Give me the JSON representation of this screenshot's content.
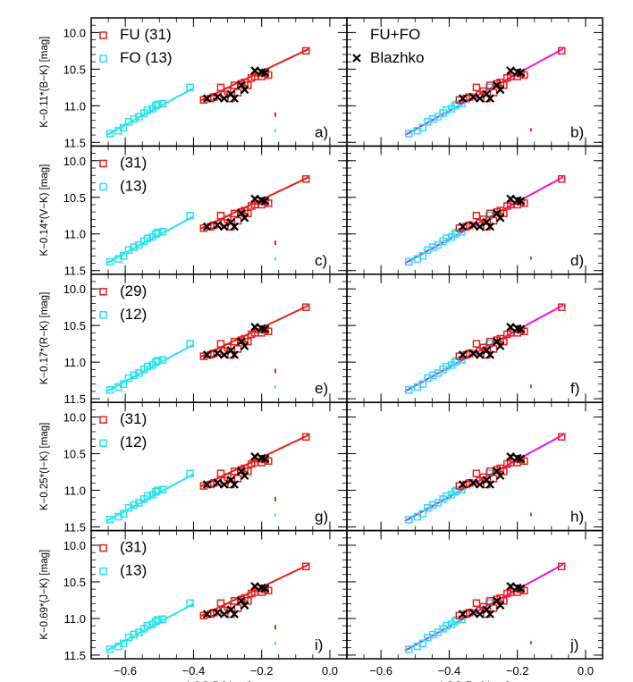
{
  "chart_data": {
    "type": "scatter",
    "x_axis": {
      "left_label": "LOG P [days]",
      "right_label_base": "LOG P",
      "right_label_sub": "F",
      "right_label_tail": " [days]",
      "range": [
        -0.7,
        0.05
      ],
      "ticks": [
        -0.6,
        -0.4,
        -0.2,
        0.0
      ],
      "tick_labels": [
        "−0.6",
        "−0.4",
        "−0.2",
        "0.0"
      ]
    },
    "y_axis": {
      "range": [
        11.55,
        9.8
      ],
      "ticks": [
        10.0,
        10.5,
        11.0,
        11.5
      ],
      "tick_labels": [
        "10.0",
        "10.5",
        "11.0",
        "11.5"
      ]
    },
    "colors": {
      "fu": "#e8201c",
      "fo": "#27e3ee",
      "fit_combined": "#ee10ee",
      "blazhko": "#000000"
    },
    "legend_text": {
      "fu_fo": "FU+FO",
      "blazhko": "Blazhko"
    },
    "rows": [
      {
        "ylabel": "K−0.11*(B−K) [mag]",
        "fu_count": "FU (31)",
        "fo_count": "FO (13)",
        "left_panel": "a)",
        "right_panel": "b)"
      },
      {
        "ylabel": "K−0.14*(V−K) [mag]",
        "fu_count": "(31)",
        "fo_count": "(13)",
        "left_panel": "c)",
        "right_panel": "d)"
      },
      {
        "ylabel": "K−0.17*(R−K) [mag]",
        "fu_count": "(29)",
        "fo_count": "(12)",
        "left_panel": "e)",
        "right_panel": "f)"
      },
      {
        "ylabel": "K−0.25*(I−K) [mag]",
        "fu_count": "(31)",
        "fo_count": "(12)",
        "left_panel": "g)",
        "right_panel": "h)"
      },
      {
        "ylabel": "K−0.69*(J−K) [mag]",
        "fu_count": "(31)",
        "fo_count": "(13)",
        "left_panel": "i)",
        "right_panel": "j)"
      }
    ],
    "fo_points": [
      [
        -0.645,
        11.38
      ],
      [
        -0.62,
        11.34
      ],
      [
        -0.605,
        11.3
      ],
      [
        -0.59,
        11.22
      ],
      [
        -0.575,
        11.18
      ],
      [
        -0.56,
        11.15
      ],
      [
        -0.545,
        11.1
      ],
      [
        -0.535,
        11.06
      ],
      [
        -0.52,
        11.04
      ],
      [
        -0.51,
        11.0
      ],
      [
        -0.505,
        10.98
      ],
      [
        -0.49,
        10.97
      ],
      [
        -0.41,
        10.75
      ]
    ],
    "fu_points": [
      [
        -0.37,
        10.92
      ],
      [
        -0.35,
        10.9
      ],
      [
        -0.34,
        10.88
      ],
      [
        -0.32,
        10.75
      ],
      [
        -0.31,
        10.85
      ],
      [
        -0.3,
        10.8
      ],
      [
        -0.29,
        10.9
      ],
      [
        -0.28,
        10.72
      ],
      [
        -0.27,
        10.82
      ],
      [
        -0.26,
        10.7
      ],
      [
        -0.25,
        10.68
      ],
      [
        -0.24,
        10.72
      ],
      [
        -0.23,
        10.62
      ],
      [
        -0.22,
        10.6
      ],
      [
        -0.21,
        10.55
      ],
      [
        -0.2,
        10.6
      ],
      [
        -0.19,
        10.56
      ],
      [
        -0.18,
        10.58
      ],
      [
        -0.07,
        10.25
      ]
    ],
    "blazhko_points": [
      [
        -0.36,
        10.9
      ],
      [
        -0.33,
        10.88
      ],
      [
        -0.31,
        10.9
      ],
      [
        -0.29,
        10.84
      ],
      [
        -0.28,
        10.9
      ],
      [
        -0.26,
        10.72
      ],
      [
        -0.25,
        10.78
      ],
      [
        -0.22,
        10.52
      ],
      [
        -0.2,
        10.54
      ],
      [
        -0.19,
        10.55
      ]
    ],
    "fo_fit": [
      [
        -0.655,
        11.4
      ],
      [
        -0.4,
        10.76
      ]
    ],
    "fu_fit": [
      [
        -0.38,
        10.93
      ],
      [
        -0.06,
        10.22
      ]
    ],
    "combined_fit": [
      [
        -0.53,
        11.4
      ],
      [
        -0.065,
        10.22
      ]
    ],
    "error_bar": {
      "x": -0.16,
      "fu_y": 11.12,
      "fo_y": 11.34,
      "combined_y": 11.33,
      "half_range": 0.03
    }
  }
}
